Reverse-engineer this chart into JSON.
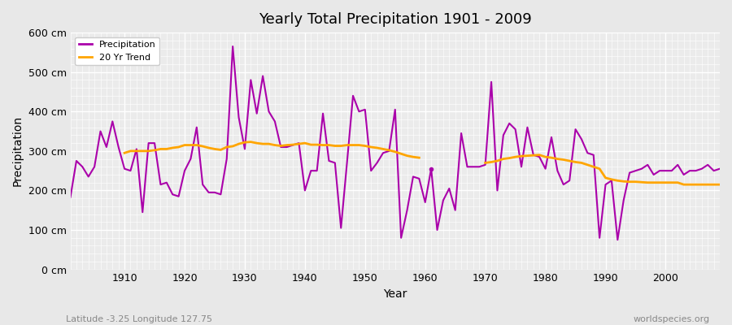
{
  "title": "Yearly Total Precipitation 1901 - 2009",
  "xlabel": "Year",
  "ylabel": "Precipitation",
  "subtitle": "Latitude -3.25 Longitude 127.75",
  "watermark": "worldspecies.org",
  "precip_color": "#aa00aa",
  "trend_color": "#ffa500",
  "bg_color": "#e8e8e8",
  "plot_bg_color": "#ebebeb",
  "ylim": [
    0,
    600
  ],
  "yticks": [
    0,
    100,
    200,
    300,
    400,
    500,
    600
  ],
  "ytick_labels": [
    "0 cm",
    "100 cm",
    "200 cm",
    "300 cm",
    "400 cm",
    "500 cm",
    "600 cm"
  ],
  "xtick_positions": [
    1910,
    1920,
    1930,
    1940,
    1950,
    1960,
    1970,
    1980,
    1990,
    2000
  ],
  "years": [
    1901,
    1902,
    1903,
    1904,
    1905,
    1906,
    1907,
    1908,
    1909,
    1910,
    1911,
    1912,
    1913,
    1914,
    1915,
    1916,
    1917,
    1918,
    1919,
    1920,
    1921,
    1922,
    1923,
    1924,
    1925,
    1926,
    1927,
    1928,
    1929,
    1930,
    1931,
    1932,
    1933,
    1934,
    1935,
    1936,
    1937,
    1938,
    1939,
    1940,
    1941,
    1942,
    1943,
    1944,
    1945,
    1946,
    1947,
    1948,
    1949,
    1950,
    1951,
    1952,
    1953,
    1954,
    1955,
    1956,
    1957,
    1958,
    1959,
    1960,
    1961,
    1962,
    1963,
    1964,
    1965,
    1966,
    1967,
    1968,
    1969,
    1970,
    1971,
    1972,
    1973,
    1974,
    1975,
    1976,
    1977,
    1978,
    1979,
    1980,
    1981,
    1982,
    1983,
    1984,
    1985,
    1986,
    1987,
    1988,
    1989,
    1990,
    1991,
    1992,
    1993,
    1994,
    1995,
    1996,
    1997,
    1998,
    1999,
    2000,
    2001,
    2002,
    2003,
    2004,
    2005,
    2006,
    2007,
    2008,
    2009
  ],
  "precip": [
    183,
    275,
    260,
    235,
    260,
    350,
    310,
    375,
    310,
    255,
    250,
    305,
    145,
    320,
    320,
    215,
    220,
    190,
    185,
    250,
    280,
    360,
    215,
    195,
    195,
    190,
    280,
    565,
    385,
    305,
    480,
    395,
    490,
    400,
    375,
    310,
    310,
    315,
    320,
    200,
    250,
    250,
    395,
    275,
    270,
    105,
    270,
    440,
    400,
    405,
    250,
    270,
    295,
    300,
    405,
    80,
    150,
    235,
    230,
    170,
    255,
    100,
    175,
    205,
    150,
    345,
    260,
    260,
    260,
    265,
    475,
    200,
    340,
    370,
    355,
    260,
    360,
    290,
    285,
    255,
    335,
    250,
    215,
    225,
    355,
    330,
    295,
    290,
    80,
    215,
    225,
    75,
    175,
    245,
    250,
    255,
    265,
    240,
    250,
    250,
    250,
    265,
    240,
    250,
    250,
    255,
    265,
    250,
    255
  ],
  "trend_years": [
    1910,
    1911,
    1912,
    1913,
    1914,
    1915,
    1916,
    1917,
    1918,
    1919,
    1920,
    1921,
    1922,
    1923,
    1924,
    1925,
    1926,
    1927,
    1928,
    1929,
    1930,
    1931,
    1932,
    1933,
    1934,
    1935,
    1936,
    1937,
    1938,
    1939,
    1940,
    1941,
    1942,
    1943,
    1944,
    1945,
    1946,
    1947,
    1948,
    1949,
    1950,
    1951,
    1952,
    1953,
    1954,
    1955,
    1956,
    1957,
    1958,
    1959,
    1970,
    1971,
    1972,
    1973,
    1974,
    1975,
    1976,
    1977,
    1978,
    1979,
    1980,
    1981,
    1982,
    1983,
    1984,
    1985,
    1986,
    1987,
    1988,
    1989,
    1990,
    1991,
    1992,
    1993,
    1994,
    1995,
    1996,
    1997,
    1998,
    1999,
    2000,
    2001,
    2002,
    2003,
    2004,
    2005,
    2006,
    2007,
    2008,
    2009
  ],
  "trend": [
    295,
    300,
    300,
    300,
    300,
    302,
    305,
    305,
    308,
    310,
    315,
    315,
    315,
    312,
    308,
    305,
    303,
    310,
    312,
    318,
    322,
    323,
    320,
    318,
    318,
    315,
    313,
    315,
    316,
    318,
    320,
    316,
    316,
    315,
    315,
    313,
    313,
    315,
    315,
    315,
    313,
    310,
    308,
    305,
    302,
    298,
    293,
    288,
    285,
    283,
    270,
    272,
    275,
    280,
    282,
    285,
    287,
    288,
    289,
    290,
    285,
    283,
    280,
    278,
    275,
    272,
    270,
    265,
    260,
    255,
    232,
    228,
    225,
    223,
    222,
    222,
    221,
    220,
    220,
    220,
    220,
    220,
    220,
    215,
    215,
    215,
    215,
    215,
    215,
    215
  ],
  "dot_x": 1961,
  "dot_y": 255
}
